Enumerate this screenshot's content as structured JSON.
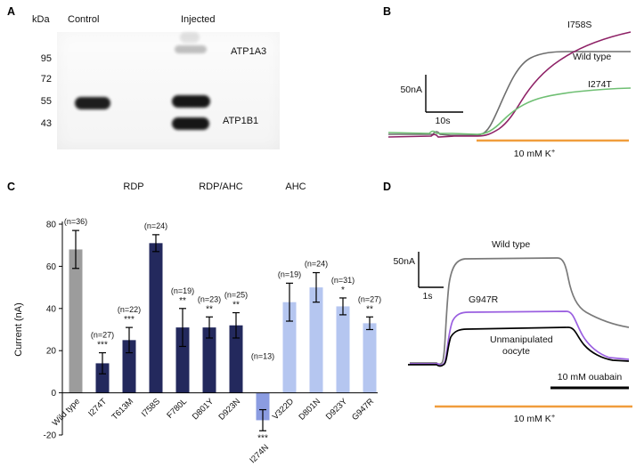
{
  "figure": {
    "panel_labels": {
      "A": "A",
      "B": "B",
      "C": "C",
      "D": "D"
    }
  },
  "panels": {
    "A": {
      "kda_header": "kDa",
      "lane_labels": [
        "Control",
        "Injected"
      ],
      "markers": [
        "95",
        "72",
        "55",
        "43"
      ],
      "band_labels": [
        "ATP1A3",
        "ATP1B1"
      ]
    },
    "B": {
      "traces": [
        {
          "name": "I758S",
          "color": "#8e2166"
        },
        {
          "name": "Wild type",
          "color": "#6e6e6e"
        },
        {
          "name": "I274T",
          "color": "#6fbf73"
        }
      ],
      "scale_vertical": "50nA",
      "scale_horizontal": "10s",
      "stimulus": {
        "text": "10 mM K",
        "sup": "+",
        "color": "#f09d3c"
      }
    },
    "D": {
      "traces": [
        {
          "name": "Wild type",
          "color": "#7a7a7a",
          "label_color": "#3f3f3f"
        },
        {
          "name": "G947R",
          "color": "#9a5fe0"
        },
        {
          "name_lines": [
            "Unmanipulated",
            "oocyte"
          ],
          "color": "#000000"
        }
      ],
      "scale_vertical": "50nA",
      "scale_horizontal": "1s",
      "ouabain": {
        "text": "10 mM ouabain",
        "color": "#000000"
      },
      "stimulus": {
        "text": "10 mM K",
        "sup": "+",
        "color": "#f09d3c"
      }
    }
  },
  "chart_data": {
    "type": "bar",
    "title": "",
    "xlabel": "",
    "ylabel": "Current (nA)",
    "ylim": [
      -20,
      80
    ],
    "yticks": [
      80,
      60,
      40,
      20,
      0,
      -20
    ],
    "groups": [
      {
        "label": "RDP",
        "color": "#23295d"
      },
      {
        "label": "RDP/AHC",
        "color": "#5f6fd0"
      },
      {
        "label": "AHC",
        "color": "#afc1ec"
      }
    ],
    "bars": [
      {
        "label": "Wild type",
        "value": 68,
        "error": 9,
        "n": "(n=36)",
        "sig": "",
        "color": "#9c9c9c",
        "group": "control"
      },
      {
        "label": "I274T",
        "value": 14,
        "error": 5,
        "n": "(n=27)",
        "sig": "***",
        "color": "#23295d",
        "group": "RDP"
      },
      {
        "label": "T613M",
        "value": 25,
        "error": 6,
        "n": "(n=22)",
        "sig": "***",
        "color": "#23295d",
        "group": "RDP"
      },
      {
        "label": "I758S",
        "value": 71,
        "error": 4,
        "n": "(n=24)",
        "sig": "",
        "color": "#23295d",
        "group": "RDP"
      },
      {
        "label": "F780L",
        "value": 31,
        "error": 9,
        "n": "(n=19)",
        "sig": "**",
        "color": "#23295d",
        "group": "RDP"
      },
      {
        "label": "D801Y",
        "value": 31,
        "error": 5,
        "n": "(n=23)",
        "sig": "**",
        "color": "#23295d",
        "group": "RDP"
      },
      {
        "label": "D923N",
        "value": 32,
        "error": 6,
        "n": "(n=25)",
        "sig": "**",
        "color": "#23295d",
        "group": "RDP"
      },
      {
        "label": "I274N",
        "value": -13,
        "error": 5,
        "n": "(n=13)",
        "sig": "***",
        "color": "#8b9ce1",
        "group": "RDP/AHC"
      },
      {
        "label": "V322D",
        "value": 43,
        "error": 9,
        "n": "(n=19)",
        "sig": "",
        "color": "#b5c6f0",
        "group": "AHC"
      },
      {
        "label": "D801N",
        "value": 50,
        "error": 7,
        "n": "(n=24)",
        "sig": "",
        "color": "#b5c6f0",
        "group": "AHC"
      },
      {
        "label": "D923Y",
        "value": 41,
        "error": 4,
        "n": "(n=31)",
        "sig": "*",
        "color": "#b5c6f0",
        "group": "AHC"
      },
      {
        "label": "G947R",
        "value": 33,
        "error": 3,
        "n": "(n=27)",
        "sig": "**",
        "color": "#b5c6f0",
        "group": "AHC"
      }
    ]
  }
}
